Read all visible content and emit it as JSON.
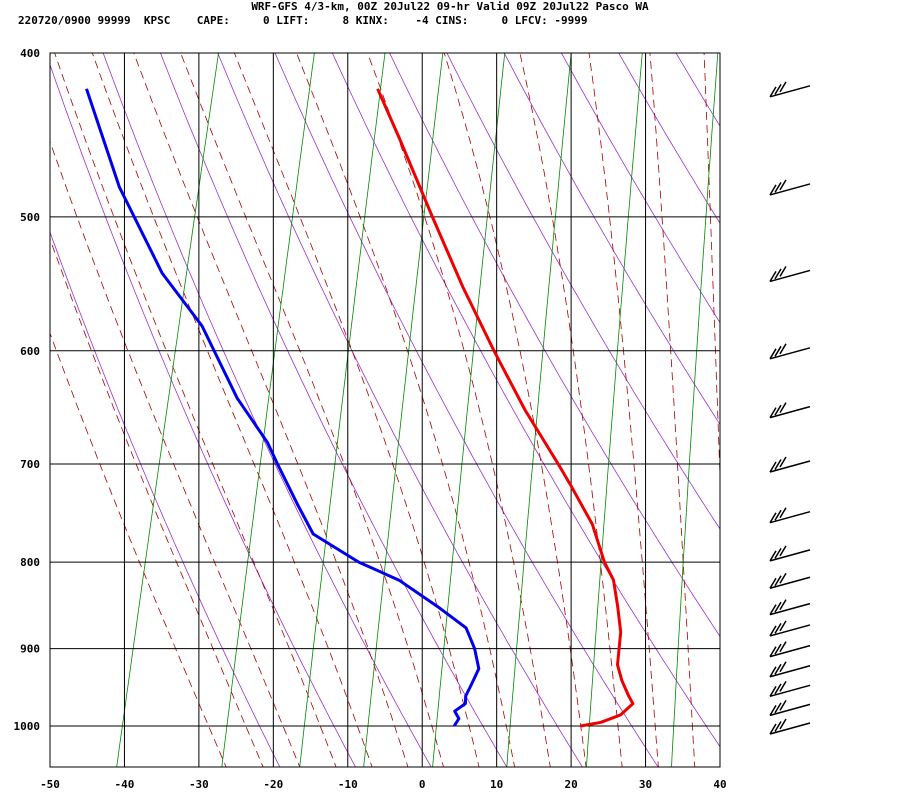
{
  "header": {
    "title": "WRF-GFS 4/3-km, 00Z 20Jul22 09-hr Valid 09Z 20Jul22 Pasco WA",
    "info": "220720/0900 99999  KPSC    CAPE:     0 LIFT:     8 KINX:    -4 CINS:     0 LFCV: -9999"
  },
  "chart_data": {
    "type": "skew-t",
    "title": "WRF-GFS 4/3-km, 00Z 20Jul22 09-hr Valid 09Z 20Jul22 Pasco WA",
    "x_axis": {
      "label": "",
      "ticks": [
        -50,
        -40,
        -30,
        -20,
        -10,
        0,
        10,
        20,
        30,
        40
      ],
      "tick_labels": [
        "-50",
        "-40",
        "-30",
        "-20",
        "-10",
        "0",
        "10",
        "20",
        "30",
        "40"
      ],
      "range": [
        -50,
        40
      ],
      "units": "°C"
    },
    "y_axis": {
      "label": "",
      "scale": "log",
      "ticks": [
        400,
        500,
        600,
        700,
        800,
        900,
        1000
      ],
      "tick_labels": [
        "400",
        "500",
        "600",
        "700",
        "800",
        "900",
        "1000"
      ],
      "range": [
        400,
        1050
      ],
      "units": "hPa"
    },
    "grid": true,
    "series": [
      {
        "role": "temperature",
        "color": "#ee0000",
        "points": [
          {
            "p": 1000,
            "t": 20.0
          },
          {
            "p": 995,
            "t": 22.6
          },
          {
            "p": 985,
            "t": 25.0
          },
          {
            "p": 970,
            "t": 26.3
          },
          {
            "p": 960,
            "t": 25.5
          },
          {
            "p": 940,
            "t": 24.1
          },
          {
            "p": 920,
            "t": 23.0
          },
          {
            "p": 880,
            "t": 22.4
          },
          {
            "p": 850,
            "t": 21.2
          },
          {
            "p": 820,
            "t": 19.8
          },
          {
            "p": 800,
            "t": 18.0
          },
          {
            "p": 760,
            "t": 15.2
          },
          {
            "p": 720,
            "t": 11.0
          },
          {
            "p": 700,
            "t": 8.7
          },
          {
            "p": 650,
            "t": 2.5
          },
          {
            "p": 600,
            "t": -3.5
          },
          {
            "p": 550,
            "t": -9.7
          },
          {
            "p": 500,
            "t": -16.0
          },
          {
            "p": 450,
            "t": -22.8
          },
          {
            "p": 420,
            "t": -27.4
          }
        ]
      },
      {
        "role": "dewpoint",
        "color": "#0000ee",
        "points": [
          {
            "p": 1000,
            "t": 3.0
          },
          {
            "p": 990,
            "t": 3.4
          },
          {
            "p": 980,
            "t": 2.6
          },
          {
            "p": 970,
            "t": 3.8
          },
          {
            "p": 960,
            "t": 3.6
          },
          {
            "p": 945,
            "t": 4.0
          },
          {
            "p": 925,
            "t": 4.5
          },
          {
            "p": 900,
            "t": 3.3
          },
          {
            "p": 875,
            "t": 1.5
          },
          {
            "p": 850,
            "t": -3.0
          },
          {
            "p": 820,
            "t": -9.0
          },
          {
            "p": 800,
            "t": -15.0
          },
          {
            "p": 770,
            "t": -22.0
          },
          {
            "p": 740,
            "t": -25.0
          },
          {
            "p": 700,
            "t": -29.0
          },
          {
            "p": 680,
            "t": -31.0
          },
          {
            "p": 640,
            "t": -36.5
          },
          {
            "p": 580,
            "t": -43.5
          },
          {
            "p": 540,
            "t": -50.5
          },
          {
            "p": 480,
            "t": -59.0
          },
          {
            "p": 420,
            "t": -66.5
          }
        ]
      }
    ],
    "background_lines": {
      "isotherms": {
        "color": "#000000"
      },
      "dry_adiabats": {
        "color": "#9933cc"
      },
      "moist_adiabats": {
        "color": "#aa0000"
      },
      "mixing_ratio": {
        "color": "#008800"
      }
    },
    "wind_barbs": [
      {
        "p": 420
      },
      {
        "p": 480
      },
      {
        "p": 540
      },
      {
        "p": 600
      },
      {
        "p": 650
      },
      {
        "p": 700
      },
      {
        "p": 750
      },
      {
        "p": 790
      },
      {
        "p": 820
      },
      {
        "p": 850
      },
      {
        "p": 875
      },
      {
        "p": 900
      },
      {
        "p": 925
      },
      {
        "p": 950
      },
      {
        "p": 975
      },
      {
        "p": 1000
      }
    ]
  }
}
